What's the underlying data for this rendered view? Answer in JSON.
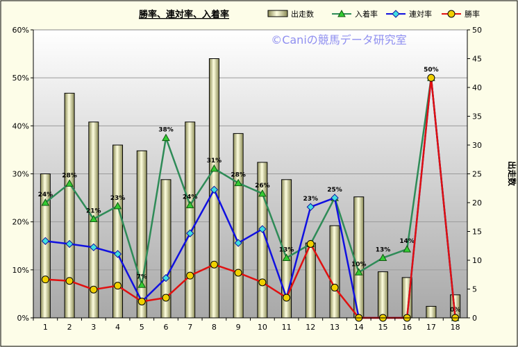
{
  "chart_data": {
    "type": "bar+line",
    "title": "勝率、連対率、入着率",
    "watermark": "©Caniの競馬データ研究室",
    "y2label": "出走数",
    "categories": [
      "1",
      "2",
      "3",
      "4",
      "5",
      "6",
      "7",
      "8",
      "9",
      "10",
      "11",
      "12",
      "13",
      "14",
      "15",
      "16",
      "17",
      "18"
    ],
    "y_left": {
      "min": 0,
      "max": 60,
      "step": 10,
      "suffix": "%"
    },
    "y_right": {
      "min": 0,
      "max": 50,
      "step": 5
    },
    "legend_position": "top",
    "grid": true,
    "bars": {
      "name": "出走数",
      "axis": "right",
      "color": "#eeeeb0",
      "values": [
        25,
        39,
        34,
        30,
        29,
        24,
        34,
        45,
        32,
        27,
        24,
        13,
        16,
        21,
        8,
        7,
        2,
        4
      ]
    },
    "series": [
      {
        "name": "入着率",
        "type": "line",
        "color": "#2e8b57",
        "marker": "triangle",
        "marker_fill": "#33cc33",
        "values": [
          24,
          28,
          20.6,
          23.3,
          6.9,
          37.5,
          23.5,
          31.1,
          28.1,
          25.9,
          12.5,
          15.4,
          25,
          9.5,
          12.5,
          14.3,
          50,
          0
        ],
        "labels": [
          "24%",
          "28%",
          "21%",
          "23%",
          "7%",
          "38%",
          "24%",
          "31%",
          "28%",
          "26%",
          "13%",
          "",
          "25%",
          "10%",
          "13%",
          "14%",
          "",
          "0%"
        ]
      },
      {
        "name": "連対率",
        "type": "line",
        "color": "#1010e0",
        "marker": "diamond",
        "marker_fill": "#40e0e0",
        "values": [
          16,
          15.4,
          14.7,
          13.3,
          3.4,
          8.3,
          17.6,
          26.7,
          15.6,
          18.5,
          4.2,
          23.1,
          25,
          0,
          0,
          0,
          50,
          0
        ],
        "labels": [
          "",
          "",
          "",
          "",
          "",
          "",
          "",
          "",
          "",
          "",
          "",
          "23%",
          "",
          "",
          "",
          "",
          "",
          ""
        ]
      },
      {
        "name": "勝率",
        "type": "line",
        "color": "#e01010",
        "marker": "circle",
        "marker_fill": "#f0d000",
        "values": [
          8,
          7.7,
          5.9,
          6.7,
          3.4,
          4.2,
          8.8,
          11.1,
          9.4,
          7.4,
          4.2,
          15.4,
          6.3,
          0,
          0,
          0,
          50,
          0
        ],
        "labels": [
          "",
          "",
          "",
          "",
          "",
          "",
          "",
          "",
          "",
          "",
          "",
          "",
          "",
          "",
          "",
          "",
          "50%",
          ""
        ]
      }
    ]
  }
}
